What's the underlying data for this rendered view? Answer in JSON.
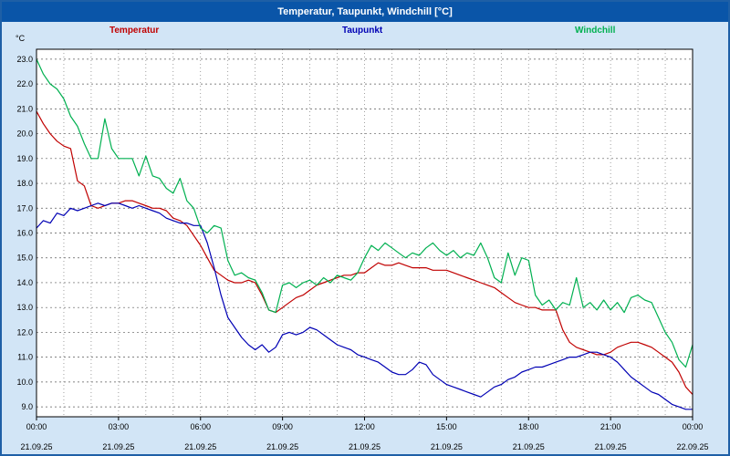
{
  "window": {
    "title": "Temperatur, Taupunkt, Windchill [°C]"
  },
  "legend": [
    {
      "label": "Temperatur",
      "color": "#c00000"
    },
    {
      "label": "Taupunkt",
      "color": "#0000b4"
    },
    {
      "label": "Windchill",
      "color": "#00b050"
    }
  ],
  "chart_data": {
    "type": "line",
    "title": "Temperatur, Taupunkt, Windchill [°C]",
    "ylabel": "°C",
    "xlabel": "",
    "ylim": [
      8.6,
      23.4
    ],
    "x_range_hours": [
      0,
      24
    ],
    "x_step_hours": 0.25,
    "grid": "dashed horizontal every 1°C, dashed vertical every hour",
    "legend_position": "top",
    "y_ticks": [
      "23.0",
      "22.0",
      "21.0",
      "20.0",
      "19.0",
      "18.0",
      "17.0",
      "16.0",
      "15.0",
      "14.0",
      "13.0",
      "12.0",
      "11.0",
      "10.0",
      "9.0"
    ],
    "x_ticks": [
      {
        "hour": 0,
        "time": "00:00",
        "date": "21.09.25"
      },
      {
        "hour": 3,
        "time": "03:00",
        "date": "21.09.25"
      },
      {
        "hour": 6,
        "time": "06:00",
        "date": "21.09.25"
      },
      {
        "hour": 9,
        "time": "09:00",
        "date": "21.09.25"
      },
      {
        "hour": 12,
        "time": "12:00",
        "date": "21.09.25"
      },
      {
        "hour": 15,
        "time": "15:00",
        "date": "21.09.25"
      },
      {
        "hour": 18,
        "time": "18:00",
        "date": "21.09.25"
      },
      {
        "hour": 21,
        "time": "21:00",
        "date": "21.09.25"
      },
      {
        "hour": 24,
        "time": "00:00",
        "date": "22.09.25"
      }
    ],
    "series": [
      {
        "name": "Temperatur",
        "color": "#c00000",
        "values": [
          20.9,
          20.4,
          20.0,
          19.7,
          19.5,
          19.4,
          18.1,
          17.9,
          17.1,
          17.0,
          17.1,
          17.2,
          17.2,
          17.3,
          17.3,
          17.2,
          17.1,
          17.0,
          17.0,
          16.9,
          16.6,
          16.5,
          16.3,
          15.9,
          15.5,
          15.0,
          14.5,
          14.3,
          14.1,
          14.0,
          14.0,
          14.1,
          14.0,
          13.5,
          12.9,
          12.8,
          13.0,
          13.2,
          13.4,
          13.5,
          13.7,
          13.9,
          14.0,
          14.1,
          14.2,
          14.3,
          14.3,
          14.4,
          14.4,
          14.6,
          14.8,
          14.7,
          14.7,
          14.8,
          14.7,
          14.6,
          14.6,
          14.6,
          14.5,
          14.5,
          14.5,
          14.4,
          14.3,
          14.2,
          14.1,
          14.0,
          13.9,
          13.8,
          13.6,
          13.4,
          13.2,
          13.1,
          13.0,
          13.0,
          12.9,
          12.9,
          12.9,
          12.1,
          11.6,
          11.4,
          11.3,
          11.2,
          11.1,
          11.1,
          11.2,
          11.4,
          11.5,
          11.6,
          11.6,
          11.5,
          11.4,
          11.2,
          11.0,
          10.8,
          10.4,
          9.8,
          9.5
        ]
      },
      {
        "name": "Taupunkt",
        "color": "#0000b4",
        "values": [
          16.2,
          16.5,
          16.4,
          16.8,
          16.7,
          17.0,
          16.9,
          17.0,
          17.1,
          17.2,
          17.1,
          17.2,
          17.2,
          17.1,
          17.0,
          17.1,
          17.0,
          16.9,
          16.8,
          16.6,
          16.5,
          16.4,
          16.4,
          16.3,
          16.3,
          15.6,
          14.6,
          13.5,
          12.6,
          12.2,
          11.8,
          11.5,
          11.3,
          11.5,
          11.2,
          11.4,
          11.9,
          12.0,
          11.9,
          12.0,
          12.2,
          12.1,
          11.9,
          11.7,
          11.5,
          11.4,
          11.3,
          11.1,
          11.0,
          10.9,
          10.8,
          10.6,
          10.4,
          10.3,
          10.3,
          10.5,
          10.8,
          10.7,
          10.3,
          10.1,
          9.9,
          9.8,
          9.7,
          9.6,
          9.5,
          9.4,
          9.6,
          9.8,
          9.9,
          10.1,
          10.2,
          10.4,
          10.5,
          10.6,
          10.6,
          10.7,
          10.8,
          10.9,
          11.0,
          11.0,
          11.1,
          11.2,
          11.2,
          11.1,
          11.0,
          10.8,
          10.5,
          10.2,
          10.0,
          9.8,
          9.6,
          9.5,
          9.3,
          9.1,
          9.0,
          8.9,
          8.9
        ]
      },
      {
        "name": "Windchill",
        "color": "#00b050",
        "values": [
          23.0,
          22.4,
          22.0,
          21.8,
          21.4,
          20.7,
          20.3,
          19.6,
          19.0,
          19.0,
          20.6,
          19.4,
          19.0,
          19.0,
          19.0,
          18.3,
          19.1,
          18.3,
          18.2,
          17.8,
          17.6,
          18.2,
          17.3,
          17.0,
          16.2,
          16.0,
          16.3,
          16.2,
          14.9,
          14.3,
          14.4,
          14.2,
          14.1,
          13.6,
          12.9,
          12.8,
          13.9,
          14.0,
          13.8,
          14.0,
          14.1,
          13.9,
          14.2,
          14.0,
          14.3,
          14.2,
          14.1,
          14.4,
          15.0,
          15.5,
          15.3,
          15.6,
          15.4,
          15.2,
          15.0,
          15.2,
          15.1,
          15.4,
          15.6,
          15.3,
          15.1,
          15.3,
          15.0,
          15.2,
          15.1,
          15.6,
          15.0,
          14.2,
          14.0,
          15.2,
          14.3,
          15.0,
          14.9,
          13.5,
          13.1,
          13.3,
          12.9,
          13.2,
          13.1,
          14.2,
          13.0,
          13.2,
          12.9,
          13.3,
          12.9,
          13.2,
          12.8,
          13.4,
          13.5,
          13.3,
          13.2,
          12.6,
          12.0,
          11.6,
          10.9,
          10.6,
          11.5
        ]
      }
    ]
  }
}
